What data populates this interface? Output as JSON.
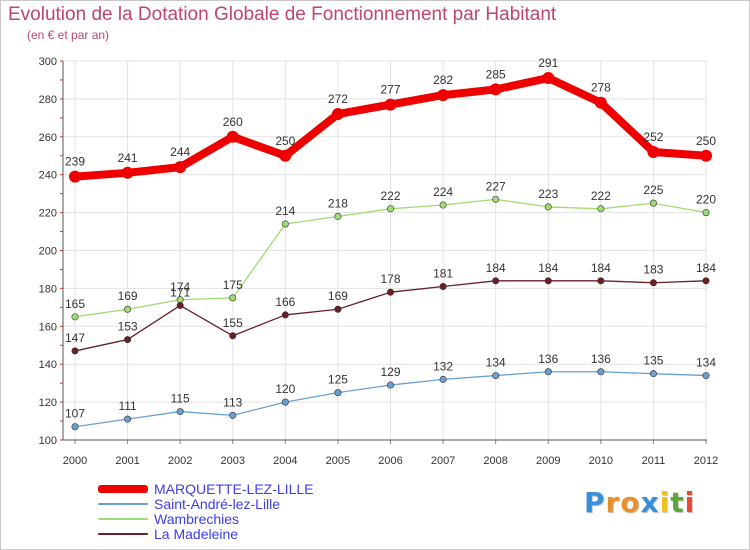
{
  "title": "Evolution de la Dotation Globale de Fonctionnement par Habitant",
  "subtitle": "(en € et par an)",
  "logo": "Proxiti",
  "chart_data": {
    "type": "line",
    "title": "Evolution de la Dotation Globale de Fonctionnement par Habitant",
    "subtitle": "(en € et par an)",
    "xlabel": "",
    "ylabel": "",
    "x": [
      "2000",
      "2001",
      "2002",
      "2003",
      "2004",
      "2005",
      "2006",
      "2007",
      "2008",
      "2009",
      "2010",
      "2011",
      "2012"
    ],
    "ylim": [
      100,
      300
    ],
    "yticks": [
      100,
      120,
      140,
      160,
      180,
      200,
      220,
      240,
      260,
      280,
      300
    ],
    "grid": true,
    "legend_position": "bottom-left",
    "series": [
      {
        "name": "MARQUETTE-LEZ-LILLE",
        "color": "#ee0000",
        "values": [
          239,
          241,
          244,
          260,
          250,
          272,
          277,
          282,
          285,
          291,
          278,
          252,
          250
        ]
      },
      {
        "name": "Saint-André-lez-Lille",
        "color": "#6aa0cf",
        "values": [
          107,
          111,
          115,
          113,
          120,
          125,
          129,
          132,
          134,
          136,
          136,
          135,
          134
        ]
      },
      {
        "name": "Wambrechies",
        "color": "#9edc72",
        "values": [
          165,
          169,
          174,
          175,
          214,
          218,
          222,
          224,
          227,
          223,
          222,
          225,
          220
        ]
      },
      {
        "name": "La Madeleine",
        "color": "#6b1f24",
        "values": [
          147,
          153,
          171,
          155,
          166,
          169,
          178,
          181,
          184,
          184,
          184,
          183,
          184
        ]
      }
    ]
  }
}
